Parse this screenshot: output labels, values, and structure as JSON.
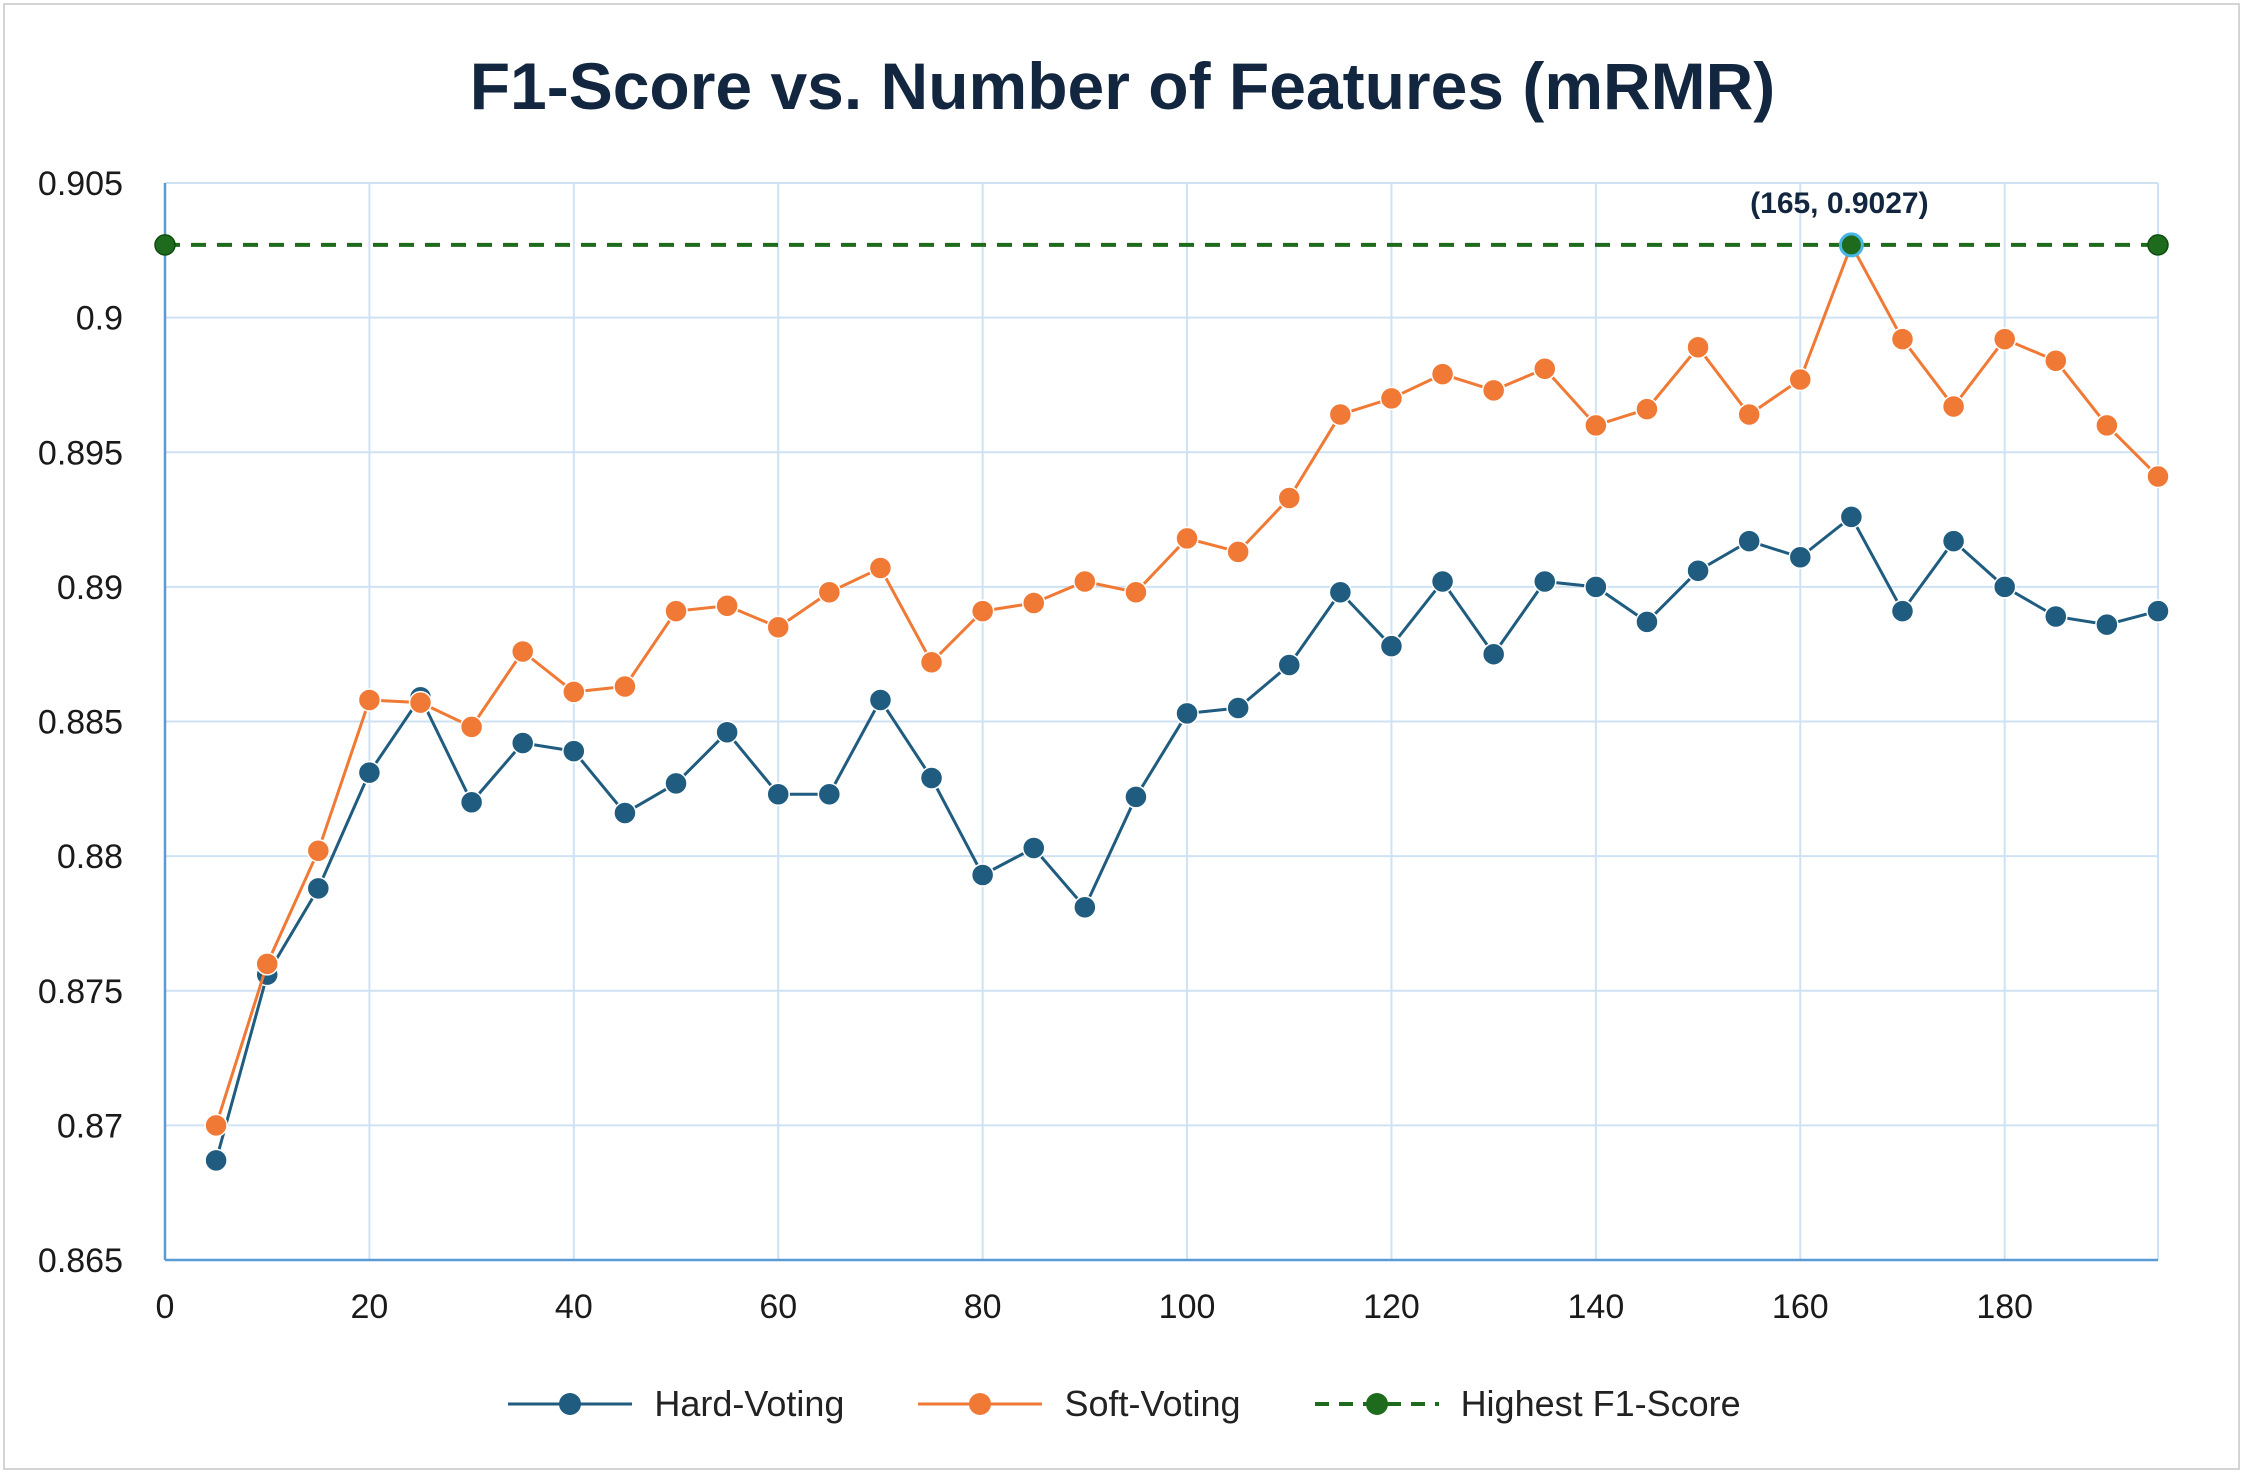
{
  "chart_data": {
    "type": "line",
    "title": "F1-Score vs. Number of Features (mRMR)",
    "xlabel": "",
    "ylabel": "",
    "xlim": [
      0,
      195
    ],
    "ylim": [
      0.865,
      0.905
    ],
    "x_ticks": [
      "0",
      "20",
      "40",
      "60",
      "80",
      "100",
      "120",
      "140",
      "160",
      "180"
    ],
    "y_ticks": [
      "0.865",
      "0.87",
      "0.875",
      "0.88",
      "0.885",
      "0.89",
      "0.895",
      "0.9",
      "0.905"
    ],
    "grid": true,
    "legend_position": "bottom",
    "x": [
      5,
      10,
      15,
      20,
      25,
      30,
      35,
      40,
      45,
      50,
      55,
      60,
      65,
      70,
      75,
      80,
      85,
      90,
      95,
      100,
      105,
      110,
      115,
      120,
      125,
      130,
      135,
      140,
      145,
      150,
      155,
      160,
      165,
      170,
      175,
      180,
      185,
      190,
      195
    ],
    "series": [
      {
        "name": "Hard-Voting",
        "color": "#1f5c7f",
        "values": [
          0.8687,
          0.8756,
          0.8788,
          0.8831,
          0.8859,
          0.882,
          0.8842,
          0.8839,
          0.8816,
          0.8827,
          0.8846,
          0.8823,
          0.8823,
          0.8858,
          0.8829,
          0.8793,
          0.8803,
          0.8781,
          0.8822,
          0.8853,
          0.8855,
          0.8871,
          0.8898,
          0.8878,
          0.8902,
          0.8875,
          0.8902,
          0.89,
          0.8887,
          0.8906,
          0.8917,
          0.8911,
          0.8926,
          0.8891,
          0.8917,
          0.89,
          0.8889,
          0.8886,
          0.8891
        ]
      },
      {
        "name": "Soft-Voting",
        "color": "#f07a35",
        "values": [
          0.87,
          0.876,
          0.8802,
          0.8858,
          0.8857,
          0.8848,
          0.8876,
          0.8861,
          0.8863,
          0.8891,
          0.8893,
          0.8885,
          0.8898,
          0.8907,
          0.8872,
          0.8891,
          0.8894,
          0.8902,
          0.8898,
          0.8918,
          0.8913,
          0.8933,
          0.8964,
          0.897,
          0.8979,
          0.8973,
          0.8981,
          0.896,
          0.8966,
          0.8989,
          0.8964,
          0.8977,
          0.9027,
          0.8992,
          0.8967,
          0.8992,
          0.8984,
          0.896,
          0.8941
        ]
      },
      {
        "name": "Highest F1-Score",
        "color": "#1e6b1e",
        "style": "dashed",
        "x": [
          0,
          195
        ],
        "values": [
          0.9027,
          0.9027
        ]
      }
    ],
    "annotation": {
      "text": "(165, 0.9027)",
      "x": 165,
      "y": 0.9027
    }
  }
}
